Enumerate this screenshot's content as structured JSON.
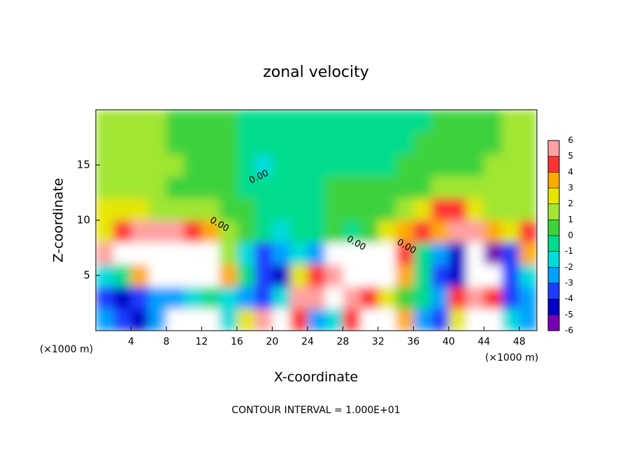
{
  "chart_data": {
    "type": "heatmap",
    "title": "zonal velocity",
    "x_label": "X-coordinate",
    "y_label": "Z-coordinate",
    "x_unit_label": "(×1000 m)",
    "y_unit_label": "(×1000 m)",
    "footer": "CONTOUR INTERVAL = 1.000E+01",
    "xlim": [
      0,
      50
    ],
    "ylim": [
      0,
      20
    ],
    "xticks": [
      4,
      8,
      12,
      16,
      20,
      24,
      28,
      32,
      36,
      40,
      44,
      48
    ],
    "yticks": [
      5,
      10,
      15
    ],
    "x": [
      1,
      3,
      5,
      7,
      9,
      11,
      13,
      15,
      17,
      19,
      21,
      23,
      25,
      27,
      29,
      31,
      33,
      35,
      37,
      39,
      41,
      43,
      45,
      47,
      49
    ],
    "y": [
      1,
      3,
      5,
      7,
      9,
      11,
      13,
      15,
      17,
      19
    ],
    "z": [
      [
        -3,
        -4,
        -5,
        -3,
        -7,
        -7,
        -7,
        -2,
        2,
        5,
        7,
        4,
        -3,
        -2,
        4,
        7,
        7,
        3,
        -3,
        -4,
        2,
        7,
        7,
        -2,
        -3
      ],
      [
        -4,
        -5,
        -4,
        -3,
        -3,
        -2,
        -1,
        -2,
        -3,
        -4,
        -2,
        5,
        5,
        7,
        5,
        4,
        2,
        0,
        -1,
        -3,
        4,
        5,
        4,
        -4,
        -3
      ],
      [
        -2,
        -1,
        3,
        6,
        7,
        7,
        7,
        3,
        -1,
        -4,
        -5,
        2,
        4,
        5,
        6,
        7,
        7,
        3,
        -1,
        -4,
        -5,
        -7,
        -7,
        -4,
        -2
      ],
      [
        5,
        7,
        7,
        7,
        7,
        7,
        6,
        1,
        -2,
        -4,
        -3,
        -2,
        -3,
        7,
        7,
        6,
        7,
        4,
        -1,
        -3,
        -5,
        -7,
        -6,
        -4,
        3
      ],
      [
        2,
        4,
        5,
        5,
        5,
        4,
        3,
        1,
        0,
        -1,
        -2,
        -1,
        -1,
        0,
        -1,
        0,
        2,
        3,
        4,
        3,
        5,
        5,
        3,
        2,
        4
      ],
      [
        2,
        2,
        2,
        1,
        1,
        1,
        1,
        0,
        0,
        -0.5,
        -0.5,
        -0.5,
        -0.5,
        0,
        0,
        0,
        0.5,
        1,
        2,
        4,
        4,
        2,
        1,
        1,
        1
      ],
      [
        1,
        1,
        1.5,
        1,
        0.5,
        0.5,
        0.5,
        0,
        -1,
        -1,
        -1,
        -0.5,
        -0.5,
        0,
        0,
        0,
        0,
        0,
        0.5,
        1,
        1,
        1,
        1,
        1,
        1.5
      ],
      [
        1,
        1,
        1.5,
        1.5,
        1,
        0.5,
        0.5,
        0,
        -1,
        -1.5,
        -1,
        -0.5,
        -0.5,
        -0.5,
        -0.5,
        -0.5,
        -0.5,
        0,
        0.5,
        0.5,
        0.5,
        0.5,
        1,
        1,
        1.5
      ],
      [
        1,
        1,
        1,
        1,
        0.5,
        0.5,
        0.5,
        0,
        -0.5,
        -0.5,
        -0.5,
        -0.5,
        -0.5,
        -0.5,
        -0.5,
        -0.5,
        -0.5,
        -0.5,
        0,
        0.5,
        0.5,
        0.5,
        0.5,
        1,
        1
      ],
      [
        1,
        1,
        1,
        1,
        0.5,
        0.5,
        0,
        0,
        -0.5,
        -0.5,
        -0.5,
        -0.5,
        -0.5,
        -0.5,
        -0.5,
        -0.5,
        -0.5,
        -0.5,
        -0.5,
        0,
        0.5,
        0.5,
        0.5,
        1,
        1
      ]
    ],
    "colorbar": {
      "ticks": [
        -6,
        -5,
        -4,
        -3,
        -2,
        -1,
        0,
        1,
        2,
        3,
        4,
        5,
        6
      ],
      "colors": [
        "#7800b4",
        "#0000c8",
        "#1e3cff",
        "#00a0ff",
        "#00dcdc",
        "#00dc8c",
        "#3cd23c",
        "#a0e632",
        "#e6e600",
        "#ffaa00",
        "#ff3232",
        "#ffa0a0"
      ],
      "out_of_range_color": "#ffffff"
    },
    "contour_labels": [
      {
        "text": "0.00",
        "x": 18.5,
        "y": 13.9
      },
      {
        "text": "0.00",
        "x": 14,
        "y": 9.6
      },
      {
        "text": "0.00",
        "x": 29.5,
        "y": 7.9
      },
      {
        "text": "0.00",
        "x": 35.2,
        "y": 7.6
      }
    ]
  }
}
